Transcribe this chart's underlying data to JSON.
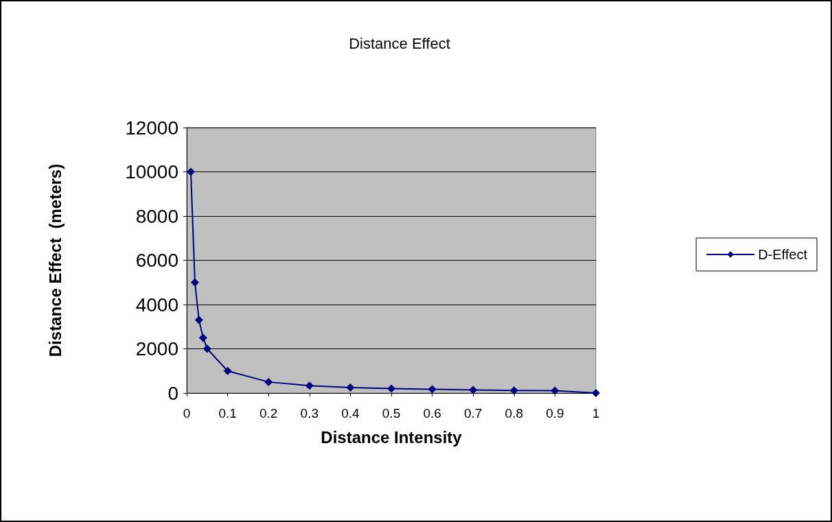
{
  "chart_data": {
    "type": "line",
    "title": "Distance Effect",
    "xlabel": "Distance Intensity",
    "ylabel": "Distance Effect  (meters)",
    "x": [
      0.01,
      0.02,
      0.03,
      0.04,
      0.05,
      0.1,
      0.2,
      0.3,
      0.4,
      0.5,
      0.6,
      0.7,
      0.8,
      0.9,
      1
    ],
    "series": [
      {
        "name": "D-Effect",
        "color": "#000080",
        "values": [
          10000,
          5000,
          3300,
          2500,
          2000,
          1000,
          500,
          330,
          250,
          200,
          170,
          140,
          120,
          110,
          0
        ]
      }
    ],
    "xlim": [
      0,
      1
    ],
    "xticks": [
      0,
      0.1,
      0.2,
      0.3,
      0.4,
      0.5,
      0.6,
      0.7,
      0.8,
      0.9,
      1
    ],
    "ylim": [
      0,
      12000
    ],
    "yticks": [
      0,
      2000,
      4000,
      6000,
      8000,
      10000,
      12000
    ],
    "grid": "y",
    "legend": "right",
    "marker": "diamond",
    "line_style": "solid"
  }
}
